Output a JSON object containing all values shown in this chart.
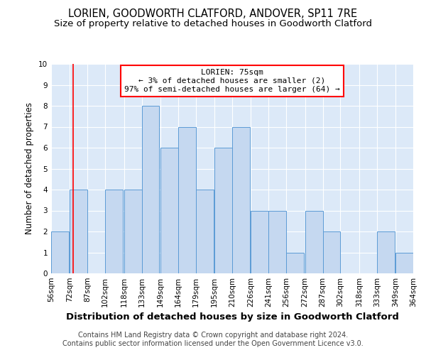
{
  "title": "LORIEN, GOODWORTH CLATFORD, ANDOVER, SP11 7RE",
  "subtitle": "Size of property relative to detached houses in Goodworth Clatford",
  "xlabel": "Distribution of detached houses by size in Goodworth Clatford",
  "ylabel": "Number of detached properties",
  "bar_left_edges": [
    56,
    72,
    87,
    102,
    118,
    133,
    149,
    164,
    179,
    195,
    210,
    226,
    241,
    256,
    272,
    287,
    302,
    318,
    333,
    349
  ],
  "bar_widths": [
    15,
    15,
    15,
    15,
    15,
    15,
    15,
    15,
    15,
    15,
    15,
    15,
    15,
    15,
    15,
    15,
    15,
    15,
    15,
    15
  ],
  "bar_heights": [
    2,
    4,
    0,
    4,
    4,
    8,
    6,
    7,
    4,
    6,
    7,
    3,
    3,
    1,
    3,
    2,
    0,
    0,
    2,
    1
  ],
  "bar_color": "#c5d8f0",
  "bar_edge_color": "#5b9bd5",
  "tick_labels": [
    "56sqm",
    "72sqm",
    "87sqm",
    "102sqm",
    "118sqm",
    "133sqm",
    "149sqm",
    "164sqm",
    "179sqm",
    "195sqm",
    "210sqm",
    "226sqm",
    "241sqm",
    "256sqm",
    "272sqm",
    "287sqm",
    "302sqm",
    "318sqm",
    "333sqm",
    "349sqm",
    "364sqm"
  ],
  "ylim": [
    0,
    10
  ],
  "yticks": [
    0,
    1,
    2,
    3,
    4,
    5,
    6,
    7,
    8,
    9,
    10
  ],
  "red_line_x": 75,
  "annotation_line1": "LORIEN: 75sqm",
  "annotation_line2": "← 3% of detached houses are smaller (2)",
  "annotation_line3": "97% of semi-detached houses are larger (64) →",
  "footer_line1": "Contains HM Land Registry data © Crown copyright and database right 2024.",
  "footer_line2": "Contains public sector information licensed under the Open Government Licence v3.0.",
  "background_color": "#ffffff",
  "plot_bg_color": "#dce9f8",
  "grid_color": "#ffffff",
  "title_fontsize": 10.5,
  "subtitle_fontsize": 9.5,
  "xlabel_fontsize": 9.5,
  "ylabel_fontsize": 8.5,
  "tick_fontsize": 7.5,
  "annotation_fontsize": 8,
  "footer_fontsize": 7
}
